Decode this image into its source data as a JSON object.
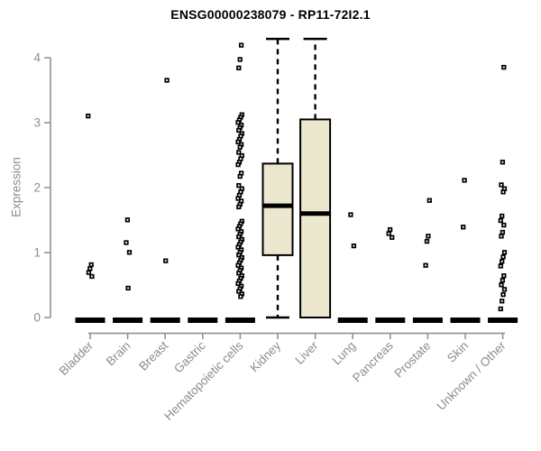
{
  "chart_data": {
    "type": "boxplot",
    "title": "ENSG00000238079 - RP11-72I2.1",
    "ylabel": "Expression",
    "xlabel": "",
    "ylim": [
      0,
      4
    ],
    "yticks": [
      0,
      1,
      2,
      3,
      4
    ],
    "grid": false,
    "legend": "none",
    "point_marker": "small-open-square",
    "colors": {
      "background": "#FFFFFF",
      "title_text": "#000000",
      "axis": "#8C8C8C",
      "tick_text": "#8C8C8C",
      "box_fill": "#ECE8CF",
      "box_border": "#000000",
      "median": "#000000",
      "whisker": "#000000",
      "point": "#000000"
    },
    "categories": [
      "Bladder",
      "Brain",
      "Breast",
      "Gastric",
      "Hematopoietic cells",
      "Kidney",
      "Liver",
      "Lung",
      "Pancreas",
      "Prostate",
      "Skin",
      "Unknown / Other"
    ],
    "boxes": [
      {
        "category": "Bladder",
        "median": 0,
        "q1": 0,
        "q3": 0,
        "whisker_low": 0,
        "whisker_high": 0,
        "outliers": [
          3.1,
          0.81,
          0.75,
          0.69,
          0.63
        ]
      },
      {
        "category": "Brain",
        "median": 0,
        "q1": 0,
        "q3": 0,
        "whisker_low": 0,
        "whisker_high": 0,
        "outliers": [
          1.5,
          1.15,
          1.0,
          0.45
        ]
      },
      {
        "category": "Breast",
        "median": 0,
        "q1": 0,
        "q3": 0,
        "whisker_low": 0,
        "whisker_high": 0,
        "outliers": [
          3.65,
          0.87
        ]
      },
      {
        "category": "Gastric",
        "median": 0,
        "q1": 0,
        "q3": 0,
        "whisker_low": 0,
        "whisker_high": 0,
        "outliers": []
      },
      {
        "category": "Hematopoietic cells",
        "median": 0,
        "q1": 0,
        "q3": 0,
        "whisker_low": 0,
        "whisker_high": 0,
        "outliers": [
          4.19,
          3.97,
          3.84,
          3.12,
          3.08,
          3.04,
          3.0,
          2.96,
          2.92,
          2.88,
          2.83,
          2.79,
          2.74,
          2.7,
          2.66,
          2.62,
          2.54,
          2.49,
          2.44,
          2.39,
          2.35,
          2.22,
          2.17,
          2.03,
          1.98,
          1.93,
          1.88,
          1.83,
          1.79,
          1.74,
          1.7,
          1.48,
          1.44,
          1.4,
          1.36,
          1.32,
          1.28,
          1.24,
          1.2,
          1.16,
          1.12,
          1.08,
          1.04,
          1.0,
          0.96,
          0.92,
          0.88,
          0.84,
          0.8,
          0.76,
          0.72,
          0.68,
          0.64,
          0.6,
          0.56,
          0.52,
          0.48,
          0.44,
          0.4,
          0.36,
          0.32
        ]
      },
      {
        "category": "Kidney",
        "median": 1.72,
        "q1": 0.96,
        "q3": 2.37,
        "whisker_low": 0,
        "whisker_high": 4.29,
        "outliers": []
      },
      {
        "category": "Liver",
        "median": 1.6,
        "q1": 0,
        "q3": 3.05,
        "whisker_low": 0,
        "whisker_high": 4.29,
        "outliers": []
      },
      {
        "category": "Lung",
        "median": 0,
        "q1": 0,
        "q3": 0,
        "whisker_low": 0,
        "whisker_high": 0,
        "outliers": [
          1.58,
          1.1
        ]
      },
      {
        "category": "Pancreas",
        "median": 0,
        "q1": 0,
        "q3": 0,
        "whisker_low": 0,
        "whisker_high": 0,
        "outliers": [
          1.35,
          1.29,
          1.23
        ]
      },
      {
        "category": "Prostate",
        "median": 0,
        "q1": 0,
        "q3": 0,
        "whisker_low": 0,
        "whisker_high": 0,
        "outliers": [
          1.8,
          1.25,
          1.17,
          0.8
        ]
      },
      {
        "category": "Skin",
        "median": 0,
        "q1": 0,
        "q3": 0,
        "whisker_low": 0,
        "whisker_high": 0,
        "outliers": [
          2.11,
          1.39
        ]
      },
      {
        "category": "Unknown / Other",
        "median": 0,
        "q1": 0,
        "q3": 0,
        "whisker_low": 0,
        "whisker_high": 0,
        "outliers": [
          3.85,
          2.39,
          2.04,
          1.98,
          1.93,
          1.56,
          1.49,
          1.42,
          1.31,
          1.25,
          1.0,
          0.93,
          0.86,
          0.79,
          0.64,
          0.57,
          0.5,
          0.43,
          0.35,
          0.25,
          0.13
        ]
      }
    ]
  }
}
